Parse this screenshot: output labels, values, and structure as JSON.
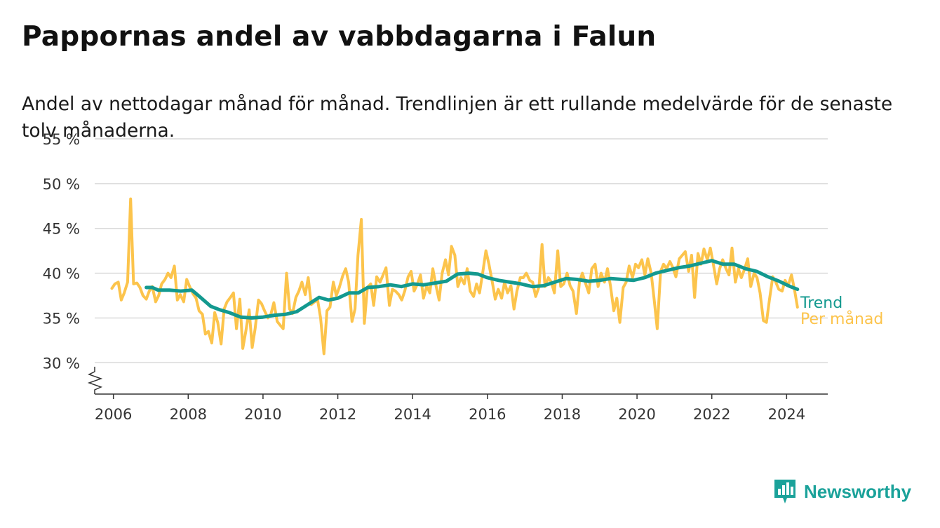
{
  "title": "Pappornas andel av vabbdagarna i Falun",
  "subtitle": "Andel av nettodagar månad för månad. Trendlinjen är ett rullande medelvärde för de senaste tolv månaderna.",
  "brand": {
    "name": "Newsworthy",
    "icon": "bar-chart-logo-icon",
    "color": "#1ba29a"
  },
  "chart_data": {
    "type": "line",
    "xlim": [
      2005.5,
      2025.1
    ],
    "ylim": [
      26.5,
      55
    ],
    "y_ticks": [
      30,
      35,
      40,
      45,
      50,
      55
    ],
    "y_tick_labels": [
      "30 %",
      "35 %",
      "40 %",
      "45 %",
      "50 %",
      "55 %"
    ],
    "x_ticks": [
      2006,
      2008,
      2010,
      2012,
      2014,
      2016,
      2018,
      2020,
      2022,
      2024
    ],
    "x_tick_labels": [
      "2006",
      "2008",
      "2010",
      "2012",
      "2014",
      "2016",
      "2018",
      "2020",
      "2022",
      "2024"
    ],
    "axis_break": true,
    "grid": true,
    "series": [
      {
        "name": "Per månad",
        "color": "#fcc44c",
        "points": [
          [
            2005.96,
            38.3
          ],
          [
            2006.04,
            38.8
          ],
          [
            2006.13,
            39.0
          ],
          [
            2006.21,
            37.0
          ],
          [
            2006.29,
            37.8
          ],
          [
            2006.38,
            39.0
          ],
          [
            2006.46,
            48.3
          ],
          [
            2006.54,
            38.8
          ],
          [
            2006.63,
            38.9
          ],
          [
            2006.71,
            38.4
          ],
          [
            2006.79,
            37.5
          ],
          [
            2006.88,
            37.1
          ],
          [
            2006.96,
            38.0
          ],
          [
            2007.04,
            38.5
          ],
          [
            2007.13,
            36.8
          ],
          [
            2007.21,
            37.5
          ],
          [
            2007.29,
            38.8
          ],
          [
            2007.38,
            39.3
          ],
          [
            2007.46,
            40.0
          ],
          [
            2007.54,
            39.5
          ],
          [
            2007.63,
            40.8
          ],
          [
            2007.71,
            37.0
          ],
          [
            2007.79,
            37.6
          ],
          [
            2007.88,
            36.8
          ],
          [
            2007.96,
            39.3
          ],
          [
            2008.04,
            38.5
          ],
          [
            2008.13,
            37.7
          ],
          [
            2008.21,
            37.2
          ],
          [
            2008.29,
            35.8
          ],
          [
            2008.38,
            35.4
          ],
          [
            2008.46,
            33.2
          ],
          [
            2008.54,
            33.5
          ],
          [
            2008.63,
            32.2
          ],
          [
            2008.71,
            35.6
          ],
          [
            2008.79,
            34.5
          ],
          [
            2008.88,
            32.1
          ],
          [
            2008.96,
            36.0
          ],
          [
            2009.04,
            36.8
          ],
          [
            2009.13,
            37.3
          ],
          [
            2009.21,
            37.8
          ],
          [
            2009.29,
            33.8
          ],
          [
            2009.38,
            37.1
          ],
          [
            2009.46,
            31.6
          ],
          [
            2009.54,
            33.5
          ],
          [
            2009.63,
            35.9
          ],
          [
            2009.71,
            31.7
          ],
          [
            2009.79,
            33.8
          ],
          [
            2009.88,
            37.0
          ],
          [
            2009.96,
            36.6
          ],
          [
            2010.04,
            35.8
          ],
          [
            2010.13,
            35.0
          ],
          [
            2010.21,
            35.4
          ],
          [
            2010.29,
            36.7
          ],
          [
            2010.38,
            34.6
          ],
          [
            2010.46,
            34.2
          ],
          [
            2010.54,
            33.8
          ],
          [
            2010.63,
            40.0
          ],
          [
            2010.71,
            36.0
          ],
          [
            2010.79,
            35.5
          ],
          [
            2010.88,
            37.3
          ],
          [
            2010.96,
            38.0
          ],
          [
            2011.04,
            39.0
          ],
          [
            2011.13,
            37.6
          ],
          [
            2011.21,
            39.5
          ],
          [
            2011.29,
            36.5
          ],
          [
            2011.38,
            36.8
          ],
          [
            2011.46,
            37.0
          ],
          [
            2011.54,
            35.0
          ],
          [
            2011.63,
            31.0
          ],
          [
            2011.71,
            35.8
          ],
          [
            2011.79,
            36.2
          ],
          [
            2011.88,
            39.0
          ],
          [
            2011.96,
            37.5
          ],
          [
            2012.04,
            38.4
          ],
          [
            2012.13,
            39.7
          ],
          [
            2012.21,
            40.5
          ],
          [
            2012.29,
            39.0
          ],
          [
            2012.38,
            34.6
          ],
          [
            2012.46,
            36.0
          ],
          [
            2012.54,
            42.0
          ],
          [
            2012.63,
            46.0
          ],
          [
            2012.71,
            34.4
          ],
          [
            2012.79,
            38.4
          ],
          [
            2012.88,
            38.8
          ],
          [
            2012.96,
            36.4
          ],
          [
            2013.04,
            39.6
          ],
          [
            2013.13,
            39.0
          ],
          [
            2013.21,
            39.8
          ],
          [
            2013.29,
            40.6
          ],
          [
            2013.38,
            36.4
          ],
          [
            2013.46,
            38.2
          ],
          [
            2013.54,
            38.0
          ],
          [
            2013.63,
            37.6
          ],
          [
            2013.71,
            37.0
          ],
          [
            2013.79,
            38.0
          ],
          [
            2013.88,
            39.6
          ],
          [
            2013.96,
            40.2
          ],
          [
            2014.04,
            38.0
          ],
          [
            2014.13,
            38.8
          ],
          [
            2014.21,
            39.8
          ],
          [
            2014.29,
            37.2
          ],
          [
            2014.38,
            38.6
          ],
          [
            2014.46,
            37.8
          ],
          [
            2014.54,
            40.5
          ],
          [
            2014.63,
            38.5
          ],
          [
            2014.71,
            37.0
          ],
          [
            2014.79,
            40.0
          ],
          [
            2014.88,
            41.5
          ],
          [
            2014.96,
            39.8
          ],
          [
            2015.04,
            43.0
          ],
          [
            2015.13,
            42.0
          ],
          [
            2015.21,
            38.5
          ],
          [
            2015.29,
            39.5
          ],
          [
            2015.38,
            38.8
          ],
          [
            2015.46,
            40.5
          ],
          [
            2015.54,
            38.0
          ],
          [
            2015.63,
            37.4
          ],
          [
            2015.71,
            38.8
          ],
          [
            2015.79,
            37.8
          ],
          [
            2015.88,
            40.2
          ],
          [
            2015.96,
            42.5
          ],
          [
            2016.04,
            41.0
          ],
          [
            2016.13,
            39.0
          ],
          [
            2016.21,
            37.1
          ],
          [
            2016.29,
            38.2
          ],
          [
            2016.38,
            37.2
          ],
          [
            2016.46,
            39.0
          ],
          [
            2016.54,
            37.8
          ],
          [
            2016.63,
            38.6
          ],
          [
            2016.71,
            36.0
          ],
          [
            2016.79,
            38.0
          ],
          [
            2016.88,
            39.5
          ],
          [
            2016.96,
            39.5
          ],
          [
            2017.04,
            40.0
          ],
          [
            2017.13,
            39.2
          ],
          [
            2017.21,
            39.0
          ],
          [
            2017.29,
            37.4
          ],
          [
            2017.38,
            38.5
          ],
          [
            2017.46,
            43.2
          ],
          [
            2017.54,
            38.5
          ],
          [
            2017.63,
            39.5
          ],
          [
            2017.71,
            39.0
          ],
          [
            2017.79,
            37.8
          ],
          [
            2017.88,
            42.5
          ],
          [
            2017.96,
            38.5
          ],
          [
            2018.04,
            38.8
          ],
          [
            2018.13,
            40.0
          ],
          [
            2018.21,
            38.6
          ],
          [
            2018.29,
            38.0
          ],
          [
            2018.38,
            35.5
          ],
          [
            2018.46,
            39.0
          ],
          [
            2018.54,
            40.0
          ],
          [
            2018.63,
            38.8
          ],
          [
            2018.71,
            37.8
          ],
          [
            2018.79,
            40.5
          ],
          [
            2018.88,
            41.0
          ],
          [
            2018.96,
            38.5
          ],
          [
            2019.04,
            40.0
          ],
          [
            2019.13,
            39.0
          ],
          [
            2019.21,
            40.5
          ],
          [
            2019.29,
            38.6
          ],
          [
            2019.38,
            35.8
          ],
          [
            2019.46,
            37.2
          ],
          [
            2019.54,
            34.5
          ],
          [
            2019.63,
            38.4
          ],
          [
            2019.71,
            39.0
          ],
          [
            2019.79,
            40.8
          ],
          [
            2019.88,
            39.5
          ],
          [
            2019.96,
            41.0
          ],
          [
            2020.04,
            40.6
          ],
          [
            2020.13,
            41.5
          ],
          [
            2020.21,
            39.8
          ],
          [
            2020.29,
            41.6
          ],
          [
            2020.38,
            40.0
          ],
          [
            2020.46,
            37.0
          ],
          [
            2020.54,
            33.8
          ],
          [
            2020.63,
            40.2
          ],
          [
            2020.71,
            41.0
          ],
          [
            2020.79,
            40.5
          ],
          [
            2020.88,
            41.3
          ],
          [
            2020.96,
            40.6
          ],
          [
            2021.04,
            39.6
          ],
          [
            2021.13,
            41.6
          ],
          [
            2021.21,
            42.0
          ],
          [
            2021.29,
            42.4
          ],
          [
            2021.38,
            40.2
          ],
          [
            2021.46,
            42.0
          ],
          [
            2021.54,
            37.3
          ],
          [
            2021.63,
            42.2
          ],
          [
            2021.71,
            41.0
          ],
          [
            2021.79,
            42.7
          ],
          [
            2021.88,
            41.5
          ],
          [
            2021.96,
            42.8
          ],
          [
            2022.04,
            41.0
          ],
          [
            2022.13,
            38.8
          ],
          [
            2022.21,
            40.5
          ],
          [
            2022.29,
            41.5
          ],
          [
            2022.38,
            40.5
          ],
          [
            2022.46,
            39.8
          ],
          [
            2022.54,
            42.8
          ],
          [
            2022.63,
            39.0
          ],
          [
            2022.71,
            40.5
          ],
          [
            2022.79,
            39.5
          ],
          [
            2022.88,
            40.5
          ],
          [
            2022.96,
            41.6
          ],
          [
            2023.04,
            38.5
          ],
          [
            2023.13,
            40.0
          ],
          [
            2023.21,
            39.5
          ],
          [
            2023.29,
            37.8
          ],
          [
            2023.38,
            34.7
          ],
          [
            2023.46,
            34.5
          ],
          [
            2023.54,
            37.0
          ],
          [
            2023.63,
            39.6
          ],
          [
            2023.71,
            39.0
          ],
          [
            2023.79,
            38.2
          ],
          [
            2023.88,
            38.0
          ],
          [
            2023.96,
            39.2
          ],
          [
            2024.04,
            38.6
          ],
          [
            2024.13,
            39.8
          ],
          [
            2024.21,
            38.2
          ],
          [
            2024.29,
            36.2
          ]
        ]
      },
      {
        "name": "Trend",
        "color": "#13998f",
        "points": [
          [
            2006.88,
            38.4
          ],
          [
            2007.04,
            38.4
          ],
          [
            2007.2,
            38.1
          ],
          [
            2007.5,
            38.1
          ],
          [
            2007.8,
            38.0
          ],
          [
            2008.1,
            38.1
          ],
          [
            2008.3,
            37.4
          ],
          [
            2008.6,
            36.3
          ],
          [
            2008.85,
            35.9
          ],
          [
            2009.1,
            35.6
          ],
          [
            2009.4,
            35.1
          ],
          [
            2009.7,
            35.0
          ],
          [
            2010.0,
            35.1
          ],
          [
            2010.3,
            35.3
          ],
          [
            2010.6,
            35.4
          ],
          [
            2010.9,
            35.7
          ],
          [
            2011.2,
            36.5
          ],
          [
            2011.5,
            37.3
          ],
          [
            2011.75,
            37.0
          ],
          [
            2012.0,
            37.2
          ],
          [
            2012.3,
            37.8
          ],
          [
            2012.55,
            37.8
          ],
          [
            2012.8,
            38.4
          ],
          [
            2013.1,
            38.5
          ],
          [
            2013.4,
            38.7
          ],
          [
            2013.7,
            38.5
          ],
          [
            2014.0,
            38.8
          ],
          [
            2014.3,
            38.7
          ],
          [
            2014.6,
            38.9
          ],
          [
            2014.9,
            39.1
          ],
          [
            2015.2,
            39.9
          ],
          [
            2015.5,
            40.0
          ],
          [
            2015.75,
            39.9
          ],
          [
            2016.0,
            39.5
          ],
          [
            2016.3,
            39.2
          ],
          [
            2016.6,
            39.0
          ],
          [
            2016.9,
            38.8
          ],
          [
            2017.2,
            38.5
          ],
          [
            2017.5,
            38.6
          ],
          [
            2017.8,
            39.0
          ],
          [
            2018.1,
            39.4
          ],
          [
            2018.4,
            39.3
          ],
          [
            2018.7,
            39.1
          ],
          [
            2019.0,
            39.2
          ],
          [
            2019.3,
            39.4
          ],
          [
            2019.6,
            39.3
          ],
          [
            2019.9,
            39.2
          ],
          [
            2020.2,
            39.5
          ],
          [
            2020.5,
            40.0
          ],
          [
            2020.8,
            40.3
          ],
          [
            2021.1,
            40.6
          ],
          [
            2021.4,
            40.8
          ],
          [
            2021.7,
            41.1
          ],
          [
            2022.0,
            41.4
          ],
          [
            2022.3,
            41.0
          ],
          [
            2022.6,
            41.0
          ],
          [
            2022.9,
            40.5
          ],
          [
            2023.2,
            40.2
          ],
          [
            2023.5,
            39.6
          ],
          [
            2023.8,
            39.1
          ],
          [
            2024.1,
            38.5
          ],
          [
            2024.29,
            38.2
          ]
        ]
      }
    ]
  }
}
